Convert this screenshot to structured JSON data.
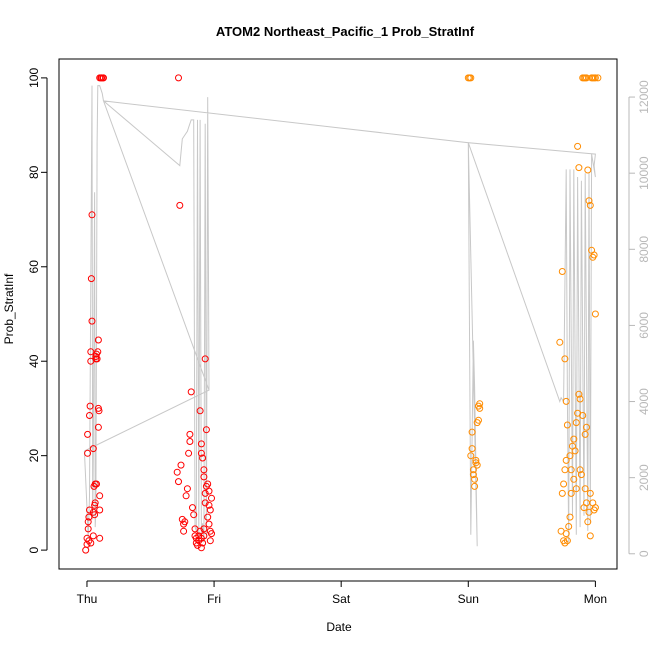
{
  "chart_data": {
    "type": "scatter",
    "title": "ATOM2 Northeast_Pacific_1 Prob_StratInf",
    "xlabel": "Date",
    "ylabel": "Prob_StratInf",
    "x_ticks": [
      "Thu",
      "Fri",
      "Sat",
      "Sun",
      "Mon"
    ],
    "xlim_days": [
      -0.22,
      4.17
    ],
    "y_ticks": [
      0,
      20,
      40,
      60,
      80,
      100
    ],
    "ylim": [
      -4,
      104
    ],
    "y2_ticks": [
      0,
      2000,
      4000,
      6000,
      8000,
      10000,
      12000
    ],
    "y2lim": [
      -400,
      13000
    ],
    "grid": false,
    "colors": {
      "series_1": "#ff0000",
      "series_2": "#ff8c00",
      "line": "#c8c8c8",
      "right_axis": "#b8b8b8"
    },
    "series": [
      {
        "color": "#ff0000",
        "points": [
          [
            -0.01,
            0
          ],
          [
            0.0,
            1.2
          ],
          [
            0.0,
            2.5
          ],
          [
            0.01,
            4.5
          ],
          [
            0.01,
            6
          ],
          [
            0.015,
            7
          ],
          [
            0.02,
            8.5
          ],
          [
            0.005,
            20.5
          ],
          [
            0.005,
            24.5
          ],
          [
            0.02,
            28.5
          ],
          [
            0.025,
            30.5
          ],
          [
            0.015,
            2
          ],
          [
            0.03,
            1.5
          ],
          [
            0.03,
            40
          ],
          [
            0.03,
            42
          ],
          [
            0.035,
            57.5
          ],
          [
            0.04,
            48.5
          ],
          [
            0.04,
            71
          ],
          [
            0.05,
            21.5
          ],
          [
            0.05,
            8
          ],
          [
            0.05,
            3
          ],
          [
            0.055,
            13.5
          ],
          [
            0.06,
            9.5
          ],
          [
            0.06,
            7.5
          ],
          [
            0.065,
            10
          ],
          [
            0.07,
            40.5
          ],
          [
            0.07,
            41
          ],
          [
            0.075,
            41.5
          ],
          [
            0.08,
            40.5
          ],
          [
            0.085,
            42
          ],
          [
            0.09,
            44.5
          ],
          [
            0.09,
            26
          ],
          [
            0.09,
            30
          ],
          [
            0.095,
            29.5
          ],
          [
            0.1,
            11.5
          ],
          [
            0.1,
            8.5
          ],
          [
            0.1,
            2.5
          ],
          [
            0.065,
            14
          ],
          [
            0.075,
            14
          ],
          [
            0.1,
            100
          ],
          [
            0.11,
            100
          ],
          [
            0.115,
            100
          ],
          [
            0.125,
            100
          ],
          [
            0.13,
            100
          ],
          [
            0.72,
            100
          ],
          [
            0.73,
            73
          ],
          [
            0.71,
            16.5
          ],
          [
            0.72,
            14.5
          ],
          [
            0.74,
            18
          ],
          [
            0.75,
            6.5
          ],
          [
            0.76,
            4
          ],
          [
            0.76,
            5.5
          ],
          [
            0.77,
            6
          ],
          [
            0.78,
            11.5
          ],
          [
            0.79,
            13
          ],
          [
            0.8,
            20.5
          ],
          [
            0.81,
            23
          ],
          [
            0.81,
            24.5
          ],
          [
            0.82,
            33.5
          ],
          [
            0.83,
            9
          ],
          [
            0.84,
            7.5
          ],
          [
            0.85,
            4.5
          ],
          [
            0.85,
            3
          ],
          [
            0.86,
            1.5
          ],
          [
            0.86,
            2.5
          ],
          [
            0.87,
            1
          ],
          [
            0.88,
            2
          ],
          [
            0.88,
            3
          ],
          [
            0.89,
            4
          ],
          [
            0.9,
            2.5
          ],
          [
            0.9,
            0.5
          ],
          [
            0.91,
            1.5
          ],
          [
            0.92,
            3
          ],
          [
            0.92,
            4.5
          ],
          [
            0.89,
            29.5
          ],
          [
            0.9,
            22.5
          ],
          [
            0.9,
            20.5
          ],
          [
            0.91,
            19.5
          ],
          [
            0.92,
            17
          ],
          [
            0.92,
            15.5
          ],
          [
            0.93,
            40.5
          ],
          [
            0.93,
            12
          ],
          [
            0.93,
            10
          ],
          [
            0.94,
            25.5
          ],
          [
            0.94,
            13.5
          ],
          [
            0.95,
            14
          ],
          [
            0.96,
            12.5
          ],
          [
            0.96,
            9.5
          ],
          [
            0.95,
            7
          ],
          [
            0.96,
            5.5
          ],
          [
            0.97,
            4
          ],
          [
            0.97,
            2
          ],
          [
            0.98,
            3.5
          ],
          [
            0.98,
            11
          ],
          [
            0.97,
            8.5
          ]
        ]
      },
      {
        "color": "#ff8c00",
        "points": [
          [
            3.0,
            100
          ],
          [
            3.01,
            100
          ],
          [
            3.02,
            100
          ],
          [
            3.03,
            25
          ],
          [
            3.02,
            20
          ],
          [
            3.03,
            21.5
          ],
          [
            3.04,
            17
          ],
          [
            3.04,
            16
          ],
          [
            3.05,
            15
          ],
          [
            3.05,
            13.5
          ],
          [
            3.06,
            18.5
          ],
          [
            3.06,
            19
          ],
          [
            3.07,
            18
          ],
          [
            3.07,
            27
          ],
          [
            3.08,
            27.5
          ],
          [
            3.08,
            30.5
          ],
          [
            3.09,
            30
          ],
          [
            3.09,
            31
          ],
          [
            3.72,
            44
          ],
          [
            3.73,
            4
          ],
          [
            3.74,
            12
          ],
          [
            3.75,
            14
          ],
          [
            3.76,
            17
          ],
          [
            3.77,
            19
          ],
          [
            3.75,
            2
          ],
          [
            3.76,
            1.5
          ],
          [
            3.77,
            3.5
          ],
          [
            3.78,
            2
          ],
          [
            3.79,
            5
          ],
          [
            3.8,
            7
          ],
          [
            3.81,
            12
          ],
          [
            3.82,
            22
          ],
          [
            3.83,
            23.5
          ],
          [
            3.84,
            21
          ],
          [
            3.85,
            27
          ],
          [
            3.74,
            59
          ],
          [
            3.76,
            40.5
          ],
          [
            3.77,
            31.5
          ],
          [
            3.78,
            26.5
          ],
          [
            3.8,
            20
          ],
          [
            3.81,
            17
          ],
          [
            3.83,
            15
          ],
          [
            3.85,
            13
          ],
          [
            3.86,
            29
          ],
          [
            3.87,
            33
          ],
          [
            3.88,
            32
          ],
          [
            3.9,
            28.5
          ],
          [
            3.91,
            9
          ],
          [
            3.92,
            24.5
          ],
          [
            3.93,
            26
          ],
          [
            3.86,
            85.5
          ],
          [
            3.87,
            81
          ],
          [
            3.94,
            80.5
          ],
          [
            3.95,
            74
          ],
          [
            3.96,
            73
          ],
          [
            3.97,
            63.5
          ],
          [
            3.98,
            62
          ],
          [
            3.99,
            62.5
          ],
          [
            4.0,
            50
          ],
          [
            3.9,
            100
          ],
          [
            3.91,
            100
          ],
          [
            3.92,
            100
          ],
          [
            3.93,
            100
          ],
          [
            3.97,
            100
          ],
          [
            3.98,
            100
          ],
          [
            3.99,
            100
          ],
          [
            4.0,
            100
          ],
          [
            4.02,
            100
          ],
          [
            3.88,
            17
          ],
          [
            3.89,
            16
          ],
          [
            3.92,
            13
          ],
          [
            3.93,
            10
          ],
          [
            3.95,
            8
          ],
          [
            3.96,
            12
          ],
          [
            3.98,
            10
          ],
          [
            3.99,
            8.5
          ],
          [
            4.0,
            9
          ],
          [
            3.94,
            6
          ],
          [
            3.96,
            3
          ]
        ]
      }
    ],
    "line_series": {
      "color": "#c8c8c8",
      "axis": "right",
      "points": [
        [
          -0.02,
          2700
        ],
        [
          0.0,
          1200
        ],
        [
          0.01,
          400
        ],
        [
          0.02,
          1500
        ],
        [
          0.04,
          12300
        ],
        [
          0.045,
          900
        ],
        [
          0.05,
          2500
        ],
        [
          0.06,
          9500
        ],
        [
          0.065,
          700
        ],
        [
          0.07,
          1200
        ],
        [
          0.08,
          10800
        ],
        [
          0.085,
          12300
        ],
        [
          0.095,
          12300
        ],
        [
          0.1,
          12300
        ],
        [
          0.12,
          12100
        ],
        [
          0.13,
          11900
        ],
        [
          0.73,
          10200
        ],
        [
          0.75,
          10900
        ],
        [
          0.77,
          11000
        ],
        [
          0.79,
          11100
        ],
        [
          0.8,
          11200
        ],
        [
          0.81,
          11300
        ],
        [
          0.82,
          11400
        ],
        [
          0.83,
          11400
        ],
        [
          0.84,
          11400
        ],
        [
          0.85,
          700
        ],
        [
          0.86,
          600
        ],
        [
          0.87,
          11400
        ],
        [
          0.88,
          400
        ],
        [
          0.89,
          11400
        ],
        [
          0.9,
          500
        ],
        [
          0.91,
          800
        ],
        [
          0.92,
          300
        ],
        [
          0.93,
          11300
        ],
        [
          0.94,
          400
        ],
        [
          0.95,
          12000
        ],
        [
          0.96,
          4300
        ],
        [
          -0.02,
          2700
        ],
        [
          0.96,
          4300
        ],
        [
          0.13,
          11900
        ],
        [
          3.0,
          10800
        ],
        [
          3.02,
          500
        ],
        [
          3.04,
          5600
        ],
        [
          3.05,
          4400
        ],
        [
          3.07,
          200
        ],
        [
          3.0,
          10800
        ],
        [
          4.0,
          10500
        ],
        [
          3.99,
          10200
        ],
        [
          4.0,
          9900
        ],
        [
          3.97,
          10500
        ],
        [
          3.96,
          800
        ],
        [
          3.95,
          10000
        ],
        [
          3.94,
          600
        ],
        [
          3.92,
          10000
        ],
        [
          3.91,
          1000
        ],
        [
          3.89,
          9800
        ],
        [
          3.88,
          700
        ],
        [
          3.86,
          9900
        ],
        [
          3.85,
          500
        ],
        [
          3.83,
          10100
        ],
        [
          3.82,
          1000
        ],
        [
          3.8,
          10100
        ],
        [
          3.79,
          300
        ],
        [
          3.78,
          4000
        ],
        [
          3.77,
          10100
        ],
        [
          3.75,
          4000
        ],
        [
          3.73,
          4100
        ],
        [
          3.72,
          4000
        ],
        [
          3.0,
          10800
        ]
      ]
    }
  }
}
